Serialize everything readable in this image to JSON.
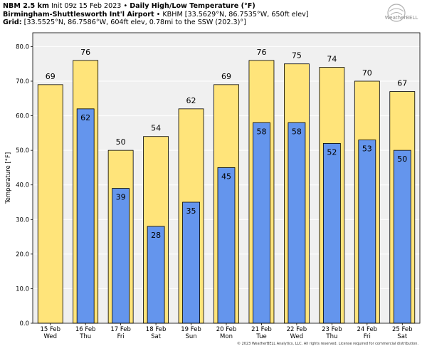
{
  "header": {
    "line1_model": "NBM 2.5 km",
    "line1_init": "Init 09z 15 Feb 2023",
    "line1_title": "Daily High/Low Temperature (°F)",
    "line2_station": "Birmingham-Shuttlesworth Int'l Airport",
    "line2_detail": "KBHM [33.5629°N, 86.7535°W, 650ft elev]",
    "line3_label": "Grid:",
    "line3_detail": "[33.5525°N, 86.7586°W, 604ft elev, 0.78mi to the SSW (202.3)°]"
  },
  "logo": {
    "text": "WeatherBELL"
  },
  "copyright": "© 2023 WeatherBELL Analytics, LLC. All rights reserved. License required for commercial distribution.",
  "colors": {
    "high": "#FFE47A",
    "low": "#6495ED",
    "plot_bg": "#F0F0F0",
    "edge": "#000000"
  },
  "chart_data": {
    "type": "bar",
    "ylabel": "Temperature [°F]",
    "ylim": [
      0,
      84
    ],
    "yticks": [
      "0.0",
      "10.0",
      "20.0",
      "30.0",
      "40.0",
      "50.0",
      "60.0",
      "70.0",
      "80.0"
    ],
    "categories": [
      "15 Feb",
      "16 Feb",
      "17 Feb",
      "18 Feb",
      "19 Feb",
      "20 Feb",
      "21 Feb",
      "22 Feb",
      "23 Feb",
      "24 Feb",
      "25 Feb"
    ],
    "weekdays": [
      "Wed",
      "Thu",
      "Fri",
      "Sat",
      "Sun",
      "Mon",
      "Tue",
      "Wed",
      "Thu",
      "Fri",
      "Sat"
    ],
    "series": [
      {
        "values": [
          69,
          76,
          50,
          54,
          62,
          69,
          76,
          75,
          74,
          70,
          67
        ]
      },
      {
        "values": [
          null,
          62,
          39,
          28,
          35,
          45,
          58,
          58,
          52,
          53,
          50
        ]
      }
    ]
  }
}
